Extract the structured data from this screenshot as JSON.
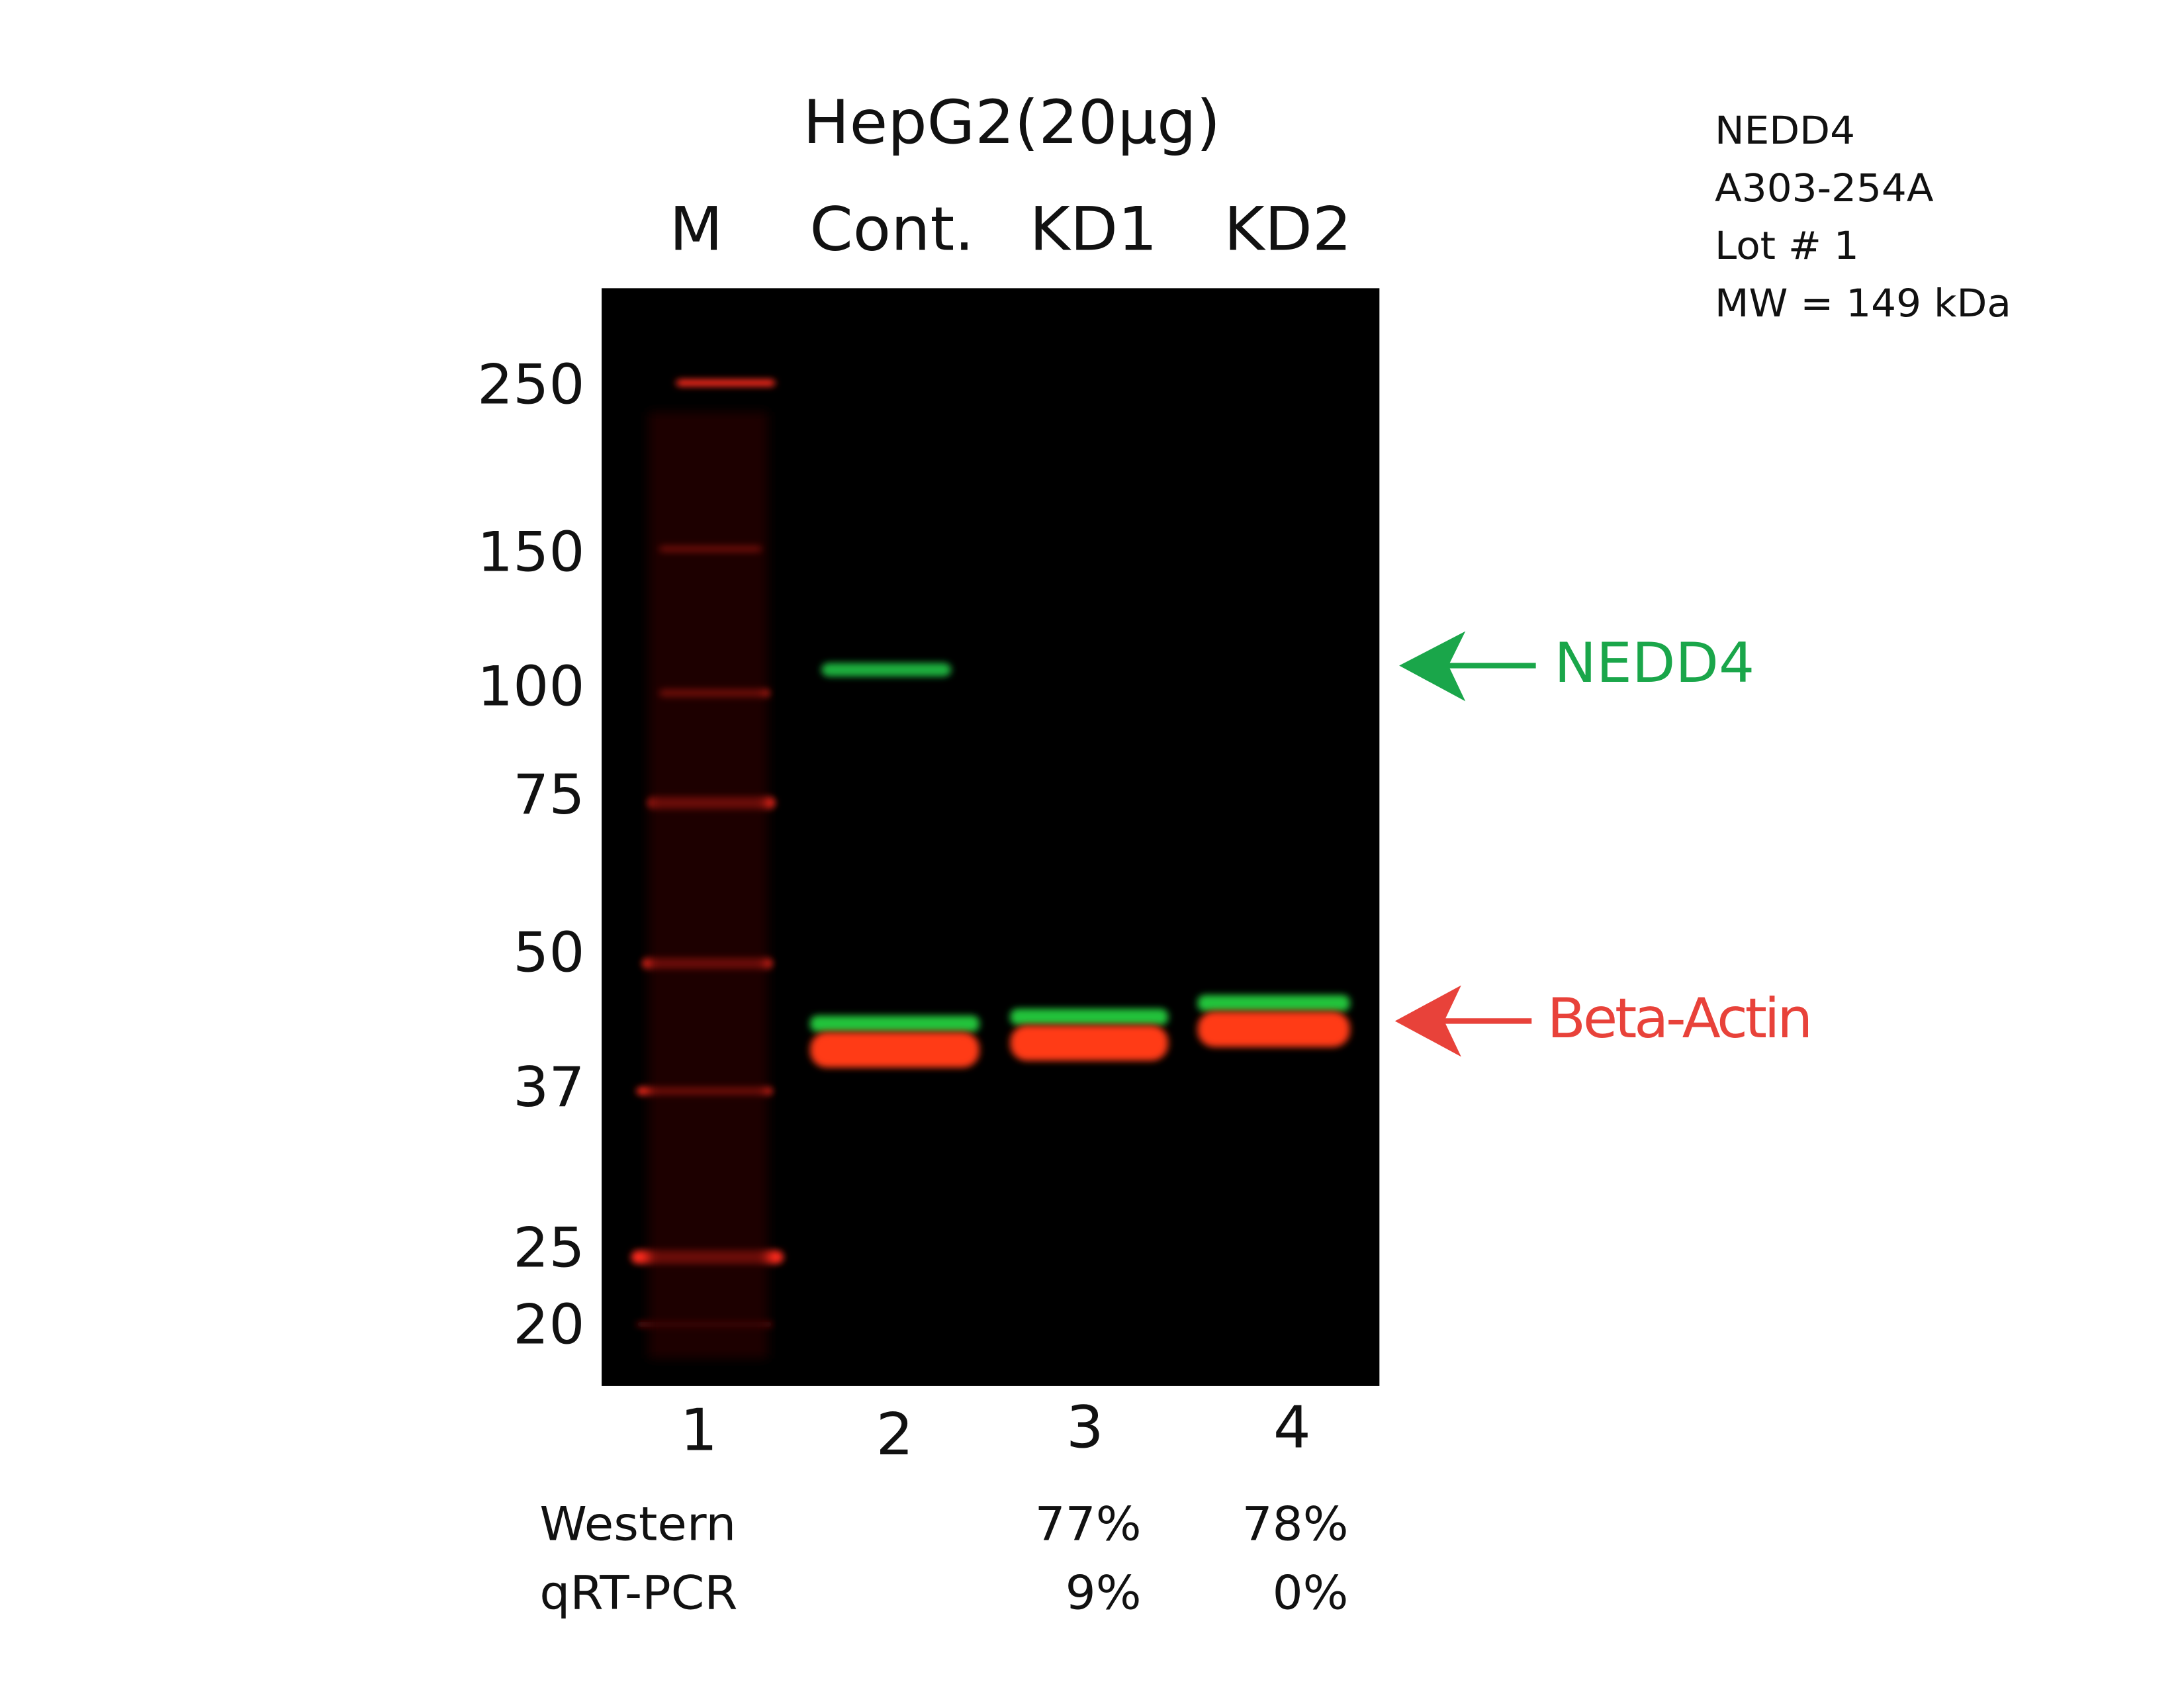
{
  "header": {
    "title": "HepG2(20µg)"
  },
  "lanes": {
    "labels": [
      "M",
      "Cont.",
      "KD1",
      "KD2"
    ],
    "numbers": [
      "1",
      "2",
      "3",
      "4"
    ]
  },
  "markers": [
    "250",
    "150",
    "100",
    "75",
    "50",
    "37",
    "25",
    "20"
  ],
  "info": [
    "NEDD4",
    "A303-254A",
    "Lot # 1",
    "MW = 149 kDa"
  ],
  "annotations": {
    "target": "NEDD4",
    "control": "Beta-Actin"
  },
  "table": {
    "rows": [
      [
        "Western",
        "77%",
        "78%"
      ],
      [
        "qRT-PCR",
        "9%",
        "0%"
      ]
    ]
  }
}
